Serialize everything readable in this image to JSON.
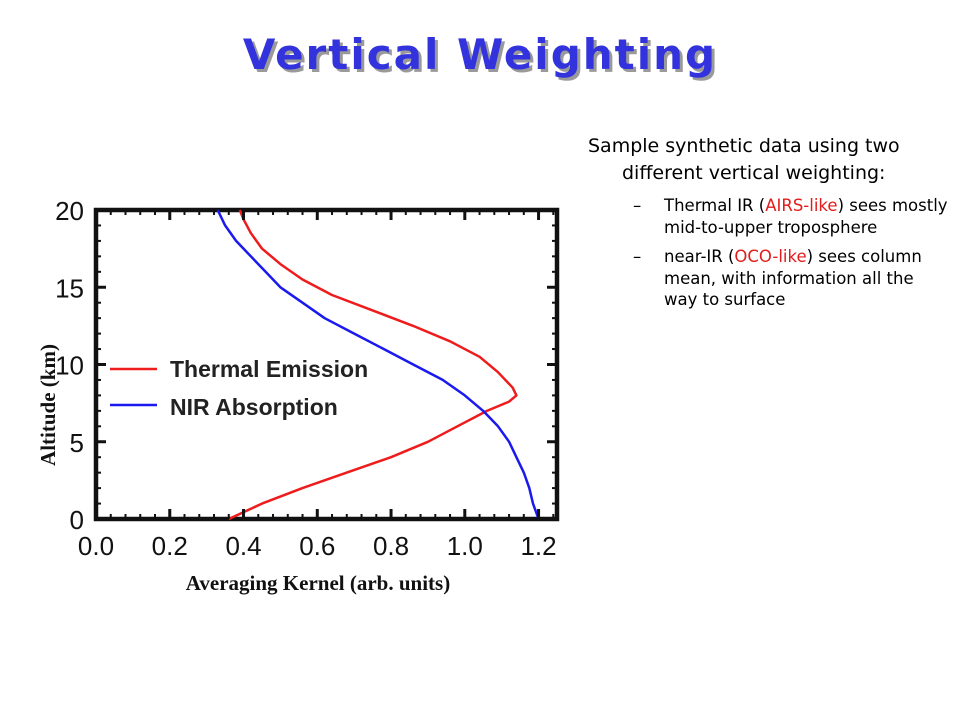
{
  "title": "Vertical Weighting",
  "notes": {
    "main": "Sample synthetic data using two different vertical weighting:",
    "bullets": [
      {
        "dash": "–",
        "before": "Thermal IR (",
        "highlight": "AIRS-like",
        "after": ") sees mostly mid-to-upper troposphere"
      },
      {
        "dash": "–",
        "before": "near-IR (",
        "highlight": "OCO-like",
        "after": ") sees column mean, with information all the way to surface"
      }
    ]
  },
  "chart_data": {
    "type": "line",
    "xlabel": "Averaging Kernel (arb. units)",
    "ylabel": "Altitude (km)",
    "xlim": [
      0.0,
      1.25
    ],
    "ylim": [
      0,
      20
    ],
    "xticks": [
      "0.0",
      "0.2",
      "0.4",
      "0.6",
      "0.8",
      "1.0",
      "1.2"
    ],
    "yticks": [
      "0",
      "5",
      "10",
      "15",
      "20"
    ],
    "legend_position": "center-left",
    "grid": false,
    "series": [
      {
        "name": "Thermal Emission",
        "color": "#ee1c1c",
        "points": [
          [
            0.36,
            0
          ],
          [
            0.45,
            1
          ],
          [
            0.56,
            2
          ],
          [
            0.68,
            3
          ],
          [
            0.8,
            4
          ],
          [
            0.9,
            5
          ],
          [
            0.98,
            6
          ],
          [
            1.06,
            7
          ],
          [
            1.12,
            7.6
          ],
          [
            1.14,
            8
          ],
          [
            1.13,
            8.5
          ],
          [
            1.09,
            9.5
          ],
          [
            1.04,
            10.5
          ],
          [
            0.96,
            11.5
          ],
          [
            0.86,
            12.5
          ],
          [
            0.75,
            13.5
          ],
          [
            0.64,
            14.5
          ],
          [
            0.56,
            15.5
          ],
          [
            0.5,
            16.5
          ],
          [
            0.45,
            17.5
          ],
          [
            0.42,
            18.5
          ],
          [
            0.4,
            19.4
          ],
          [
            0.39,
            20
          ]
        ]
      },
      {
        "name": "NIR Absorption",
        "color": "#1a1aee",
        "points": [
          [
            1.2,
            0
          ],
          [
            1.185,
            1
          ],
          [
            1.175,
            2
          ],
          [
            1.16,
            3
          ],
          [
            1.14,
            4
          ],
          [
            1.12,
            5
          ],
          [
            1.09,
            6
          ],
          [
            1.05,
            7
          ],
          [
            1.0,
            8
          ],
          [
            0.94,
            9
          ],
          [
            0.86,
            10
          ],
          [
            0.78,
            11
          ],
          [
            0.7,
            12
          ],
          [
            0.62,
            13
          ],
          [
            0.56,
            14
          ],
          [
            0.5,
            15
          ],
          [
            0.46,
            16
          ],
          [
            0.42,
            17
          ],
          [
            0.38,
            18
          ],
          [
            0.35,
            19
          ],
          [
            0.33,
            20
          ]
        ]
      }
    ]
  }
}
